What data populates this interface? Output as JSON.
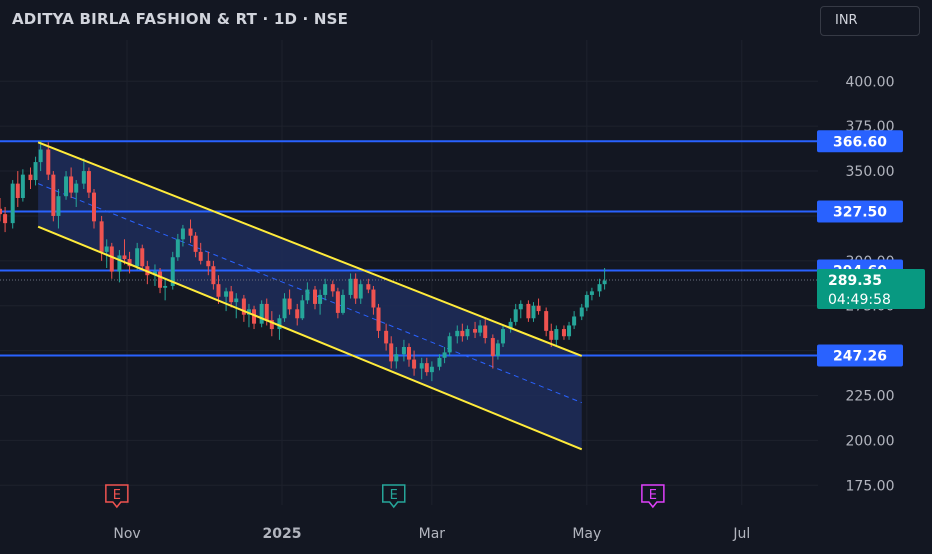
{
  "header": {
    "title": "ADITYA BIRLA FASHION & RT · 1D · NSE",
    "currency": "INR"
  },
  "colors": {
    "background": "#131722",
    "grid": "#1e222d",
    "level_line": "#2962ff",
    "channel_line": "#ffeb3b",
    "channel_fill": "#1e2d5a",
    "up_candle": "#26a69a",
    "down_candle": "#ef5350",
    "last_price_badge": "#089981",
    "earnings_past_down": "#ef5350",
    "earnings_past_up": "#26a69a",
    "earnings_future": "#e040fb"
  },
  "chart_data": {
    "type": "candlestick",
    "title": "ADITYA BIRLA FASHION & RT · 1D · NSE",
    "currency": "INR",
    "x_ticks": [
      "Nov",
      "2025",
      "Mar",
      "May",
      "Jul"
    ],
    "y_ticks": [
      "175.00",
      "200.00",
      "225.00",
      "250.00",
      "275.00",
      "300.00",
      "325.00",
      "350.00",
      "375.00",
      "400.00"
    ],
    "ylim": [
      164,
      423
    ],
    "xlim": [
      "2024-09-12",
      "2025-07-31"
    ],
    "grid": true,
    "horizontal_levels": [
      {
        "value": 366.6,
        "label": "366.60"
      },
      {
        "value": 327.5,
        "label": "327.50"
      },
      {
        "value": 294.6,
        "label": "294.60"
      },
      {
        "value": 247.26,
        "label": "247.26"
      }
    ],
    "last_price": {
      "value": 289.35,
      "label": "289.35",
      "countdown": "04:49:58"
    },
    "channel": {
      "upper": [
        {
          "date": "2024-09-27",
          "value": 366
        },
        {
          "date": "2025-04-29",
          "value": 247
        }
      ],
      "lower": [
        {
          "date": "2024-09-27",
          "value": 319
        },
        {
          "date": "2025-04-29",
          "value": 195
        }
      ],
      "middle": [
        {
          "date": "2024-09-27",
          "value": 343
        },
        {
          "date": "2025-04-29",
          "value": 221
        }
      ]
    },
    "earnings": [
      {
        "date": "2024-10-28",
        "label": "E",
        "kind": "past_down"
      },
      {
        "date": "2025-02-14",
        "label": "E",
        "kind": "past_up"
      },
      {
        "date": "2025-05-27",
        "label": "E",
        "kind": "future"
      }
    ],
    "series": [
      {
        "type": "ohlc",
        "points": [
          [
            "2024-09-12",
            329,
            335,
            322,
            326
          ],
          [
            "2024-09-14",
            326,
            330,
            316,
            321
          ],
          [
            "2024-09-17",
            321,
            345,
            318,
            343
          ],
          [
            "2024-09-19",
            343,
            350,
            330,
            335
          ],
          [
            "2024-09-21",
            335,
            351,
            333,
            348
          ],
          [
            "2024-09-24",
            348,
            352,
            340,
            345
          ],
          [
            "2024-09-26",
            345,
            358,
            342,
            355
          ],
          [
            "2024-09-28",
            355,
            367,
            350,
            362
          ],
          [
            "2024-10-01",
            362,
            366,
            345,
            348
          ],
          [
            "2024-10-03",
            348,
            350,
            322,
            325
          ],
          [
            "2024-10-05",
            325,
            340,
            318,
            336
          ],
          [
            "2024-10-08",
            336,
            350,
            334,
            347
          ],
          [
            "2024-10-10",
            347,
            352,
            335,
            338
          ],
          [
            "2024-10-12",
            338,
            345,
            330,
            343
          ],
          [
            "2024-10-15",
            343,
            357,
            340,
            350
          ],
          [
            "2024-10-17",
            350,
            352,
            335,
            338
          ],
          [
            "2024-10-19",
            338,
            340,
            318,
            322
          ],
          [
            "2024-10-22",
            322,
            325,
            300,
            305
          ],
          [
            "2024-10-24",
            305,
            312,
            296,
            308
          ],
          [
            "2024-10-26",
            308,
            310,
            290,
            294
          ],
          [
            "2024-10-29",
            294,
            306,
            288,
            303
          ],
          [
            "2024-10-31",
            303,
            312,
            298,
            301
          ],
          [
            "2024-11-02",
            301,
            305,
            293,
            297
          ],
          [
            "2024-11-05",
            297,
            310,
            295,
            307
          ],
          [
            "2024-11-07",
            307,
            309,
            295,
            297
          ],
          [
            "2024-11-09",
            297,
            300,
            287,
            292
          ],
          [
            "2024-11-12",
            292,
            298,
            286,
            294
          ],
          [
            "2024-11-14",
            294,
            296,
            282,
            285
          ],
          [
            "2024-11-16",
            285,
            290,
            278,
            286
          ],
          [
            "2024-11-19",
            286,
            305,
            284,
            302
          ],
          [
            "2024-11-21",
            302,
            315,
            300,
            312
          ],
          [
            "2024-11-23",
            312,
            320,
            308,
            318
          ],
          [
            "2024-11-26",
            318,
            323,
            310,
            314
          ],
          [
            "2024-11-28",
            314,
            316,
            302,
            305
          ],
          [
            "2024-11-30",
            305,
            310,
            298,
            300
          ],
          [
            "2024-12-03",
            300,
            305,
            292,
            297
          ],
          [
            "2024-12-05",
            297,
            300,
            284,
            287
          ],
          [
            "2024-12-07",
            287,
            292,
            276,
            280
          ],
          [
            "2024-12-10",
            280,
            285,
            272,
            283
          ],
          [
            "2024-12-12",
            283,
            286,
            274,
            277
          ],
          [
            "2024-12-14",
            277,
            282,
            268,
            279
          ],
          [
            "2024-12-17",
            279,
            281,
            266,
            270
          ],
          [
            "2024-12-19",
            270,
            276,
            263,
            273
          ],
          [
            "2024-12-21",
            273,
            275,
            262,
            265
          ],
          [
            "2024-12-24",
            265,
            278,
            263,
            276
          ],
          [
            "2024-12-26",
            276,
            279,
            264,
            267
          ],
          [
            "2024-12-28",
            267,
            272,
            258,
            262
          ],
          [
            "2024-12-31",
            262,
            270,
            256,
            268
          ],
          [
            "2025-01-02",
            268,
            282,
            266,
            279
          ],
          [
            "2025-01-04",
            279,
            284,
            270,
            273
          ],
          [
            "2025-01-07",
            273,
            276,
            264,
            268
          ],
          [
            "2025-01-09",
            268,
            281,
            267,
            278
          ],
          [
            "2025-01-11",
            278,
            288,
            276,
            284
          ],
          [
            "2025-01-14",
            284,
            286,
            273,
            276
          ],
          [
            "2025-01-16",
            276,
            284,
            270,
            281
          ],
          [
            "2025-01-18",
            281,
            290,
            278,
            287
          ],
          [
            "2025-01-21",
            287,
            289,
            280,
            283
          ],
          [
            "2025-01-23",
            283,
            285,
            268,
            271
          ],
          [
            "2025-01-25",
            271,
            284,
            270,
            281
          ],
          [
            "2025-01-28",
            281,
            293,
            279,
            290
          ],
          [
            "2025-01-30",
            290,
            293,
            276,
            279
          ],
          [
            "2025-02-01",
            279,
            289,
            276,
            287
          ],
          [
            "2025-02-04",
            287,
            290,
            282,
            284
          ],
          [
            "2025-02-06",
            284,
            286,
            270,
            274
          ],
          [
            "2025-02-08",
            274,
            276,
            257,
            261
          ],
          [
            "2025-02-11",
            261,
            265,
            250,
            254
          ],
          [
            "2025-02-13",
            254,
            258,
            240,
            244
          ],
          [
            "2025-02-15",
            244,
            252,
            240,
            248
          ],
          [
            "2025-02-18",
            248,
            256,
            244,
            252
          ],
          [
            "2025-02-20",
            252,
            254,
            241,
            245
          ],
          [
            "2025-02-22",
            245,
            250,
            236,
            240
          ],
          [
            "2025-02-25",
            240,
            246,
            234,
            243
          ],
          [
            "2025-02-27",
            243,
            246,
            236,
            238
          ],
          [
            "2025-03-01",
            238,
            244,
            233,
            241
          ],
          [
            "2025-03-04",
            241,
            248,
            239,
            246
          ],
          [
            "2025-03-06",
            246,
            252,
            243,
            249
          ],
          [
            "2025-03-08",
            249,
            260,
            247,
            258
          ],
          [
            "2025-03-11",
            258,
            264,
            254,
            261
          ],
          [
            "2025-03-13",
            261,
            265,
            255,
            258
          ],
          [
            "2025-03-15",
            258,
            264,
            256,
            262
          ],
          [
            "2025-03-18",
            262,
            266,
            257,
            260
          ],
          [
            "2025-03-20",
            260,
            267,
            258,
            264
          ],
          [
            "2025-03-22",
            264,
            268,
            254,
            257
          ],
          [
            "2025-03-25",
            257,
            259,
            240,
            247
          ],
          [
            "2025-03-27",
            247,
            256,
            245,
            254
          ],
          [
            "2025-03-29",
            254,
            264,
            252,
            262
          ],
          [
            "2025-04-01",
            262,
            268,
            260,
            266
          ],
          [
            "2025-04-03",
            266,
            276,
            264,
            273
          ],
          [
            "2025-04-05",
            273,
            278,
            268,
            276
          ],
          [
            "2025-04-08",
            276,
            278,
            266,
            268
          ],
          [
            "2025-04-10",
            268,
            277,
            266,
            275
          ],
          [
            "2025-04-12",
            275,
            279,
            270,
            272
          ],
          [
            "2025-04-15",
            272,
            274,
            258,
            261
          ],
          [
            "2025-04-17",
            261,
            265,
            252,
            256
          ],
          [
            "2025-04-19",
            256,
            264,
            252,
            262
          ],
          [
            "2025-04-22",
            262,
            264,
            256,
            258
          ],
          [
            "2025-04-24",
            258,
            266,
            256,
            264
          ],
          [
            "2025-04-26",
            264,
            272,
            262,
            269
          ],
          [
            "2025-04-29",
            269,
            276,
            267,
            274
          ],
          [
            "2025-05-01",
            274,
            283,
            272,
            281
          ],
          [
            "2025-05-03",
            281,
            285,
            278,
            283
          ],
          [
            "2025-05-06",
            283,
            290,
            280,
            287
          ],
          [
            "2025-05-08",
            287,
            296,
            284,
            289
          ]
        ]
      }
    ]
  }
}
